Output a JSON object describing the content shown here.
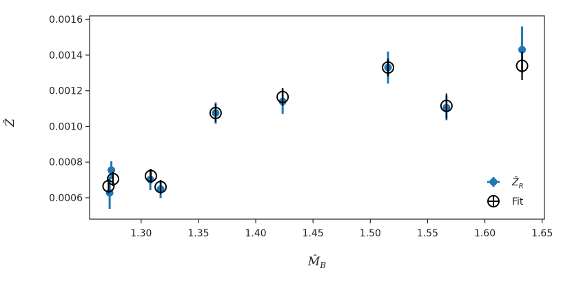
{
  "chart_data": {
    "type": "scatter",
    "xlabel": "M̂_B",
    "ylabel": "Ẑ",
    "xlim": [
      1.255,
      1.652
    ],
    "ylim": [
      0.00048,
      0.00162
    ],
    "xticks": [
      1.3,
      1.35,
      1.4,
      1.45,
      1.5,
      1.55,
      1.6,
      1.65
    ],
    "xtick_labels": [
      "1.30",
      "1.35",
      "1.40",
      "1.45",
      "1.50",
      "1.55",
      "1.60",
      "1.65"
    ],
    "yticks": [
      0.0006,
      0.0008,
      0.001,
      0.0012,
      0.0014,
      0.0016
    ],
    "ytick_labels": [
      "0.0006",
      "0.0008",
      "0.0010",
      "0.0012",
      "0.0014",
      "0.0016"
    ],
    "grid": false,
    "legend_position": "lower right",
    "series": [
      {
        "name": "Ẑ_R",
        "marker": "filled-circle",
        "color": "#1f77b4",
        "points": [
          {
            "x": 1.2725,
            "y": 0.000628,
            "err": 9e-05
          },
          {
            "x": 1.274,
            "y": 0.000755,
            "err": 5e-05
          },
          {
            "x": 1.308,
            "y": 0.000702,
            "err": 6e-05
          },
          {
            "x": 1.317,
            "y": 0.000648,
            "err": 5e-05
          },
          {
            "x": 1.365,
            "y": 0.001075,
            "err": 6e-05
          },
          {
            "x": 1.4235,
            "y": 0.00114,
            "err": 7e-05
          },
          {
            "x": 1.5155,
            "y": 0.00133,
            "err": 9e-05
          },
          {
            "x": 1.5665,
            "y": 0.001105,
            "err": 7e-05
          },
          {
            "x": 1.6325,
            "y": 0.00143,
            "err": 0.00013
          }
        ]
      },
      {
        "name": "Fit",
        "marker": "open-circle",
        "color": "#000000",
        "points": [
          {
            "x": 1.2715,
            "y": 0.000665,
            "err": 4e-05
          },
          {
            "x": 1.2755,
            "y": 0.000705,
            "err": 4e-05
          },
          {
            "x": 1.3085,
            "y": 0.000722,
            "err": 4e-05
          },
          {
            "x": 1.317,
            "y": 0.00066,
            "err": 4e-05
          },
          {
            "x": 1.365,
            "y": 0.001075,
            "err": 5e-05
          },
          {
            "x": 1.4235,
            "y": 0.001165,
            "err": 5e-05
          },
          {
            "x": 1.5155,
            "y": 0.00133,
            "err": 5e-05
          },
          {
            "x": 1.5665,
            "y": 0.001115,
            "err": 7e-05
          },
          {
            "x": 1.6325,
            "y": 0.00134,
            "err": 8e-05
          }
        ]
      }
    ]
  }
}
